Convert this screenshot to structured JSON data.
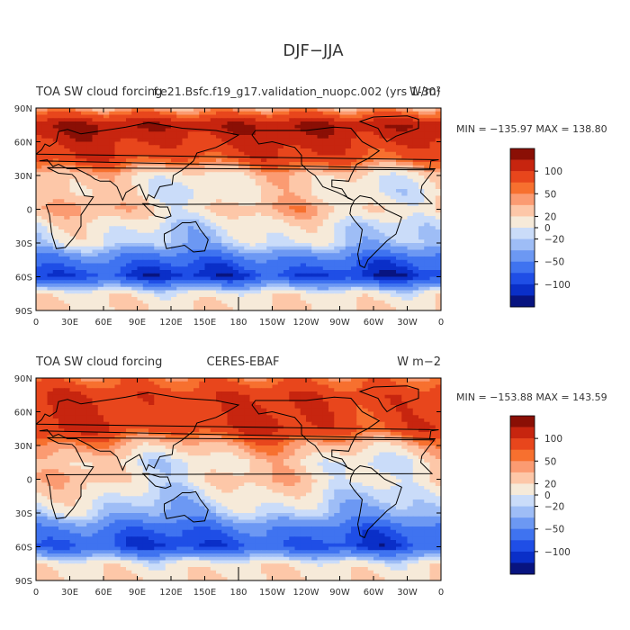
{
  "page_title": "DJF−JJA",
  "colorbar": {
    "colors": [
      "#081480",
      "#0a2fc8",
      "#1f4ee6",
      "#3f73f0",
      "#6c98f3",
      "#9ebdf6",
      "#cadcf9",
      "#f6ead9",
      "#fdc7a8",
      "#fb9b72",
      "#f7702f",
      "#e8461c",
      "#c7250f",
      "#8a0f05"
    ],
    "labels": [
      "100",
      "50",
      "20",
      "0",
      "−20",
      "−50",
      "−100"
    ]
  },
  "panels": [
    {
      "title_left": "TOA SW cloud forcing",
      "title_center": "f.e21.Bsfc.f19_g17.validation_nuopc.002 (yrs 1-30)",
      "units": "W/m²",
      "stats": "MIN = −135.97 MAX = 138.80"
    },
    {
      "title_left": "TOA SW cloud forcing",
      "title_center": "CERES-EBAF",
      "units": "W m−2",
      "stats": "MIN = −153.88 MAX = 143.59"
    }
  ],
  "axes": {
    "lat_ticks": [
      "90N",
      "60N",
      "30N",
      "0",
      "30S",
      "60S",
      "90S"
    ],
    "lon_ticks": [
      "0",
      "30E",
      "60E",
      "90E",
      "120E",
      "150E",
      "180",
      "150W",
      "120W",
      "90W",
      "60W",
      "30W",
      "0"
    ]
  },
  "chart_data": [
    {
      "type": "heatmap",
      "title": "TOA SW cloud forcing",
      "subtitle": "f.e21.Bsfc.f19_g17.validation_nuopc.002 (yrs 1-30)",
      "units": "W/m²",
      "x_ticks": [
        "0",
        "30E",
        "60E",
        "90E",
        "120E",
        "150E",
        "180",
        "150W",
        "120W",
        "90W",
        "60W",
        "30W",
        "0"
      ],
      "y_ticks": [
        "90N",
        "60N",
        "30N",
        "0",
        "30S",
        "60S",
        "90S"
      ],
      "min": -135.97,
      "max": 138.8,
      "zonal_profile": [
        {
          "lat": 90,
          "value": 20
        },
        {
          "lat": 75,
          "value": 100
        },
        {
          "lat": 60,
          "value": 80
        },
        {
          "lat": 45,
          "value": 60
        },
        {
          "lat": 30,
          "value": 0
        },
        {
          "lat": 15,
          "value": -10
        },
        {
          "lat": 0,
          "value": 10
        },
        {
          "lat": -15,
          "value": -20
        },
        {
          "lat": -30,
          "value": -30
        },
        {
          "lat": -45,
          "value": -90
        },
        {
          "lat": -60,
          "value": -120
        },
        {
          "lat": -75,
          "value": -10
        },
        {
          "lat": -90,
          "value": 0
        }
      ]
    },
    {
      "type": "heatmap",
      "title": "TOA SW cloud forcing",
      "subtitle": "CERES-EBAF",
      "units": "W m−2",
      "x_ticks": [
        "0",
        "30E",
        "60E",
        "90E",
        "120E",
        "150E",
        "180",
        "150W",
        "120W",
        "90W",
        "60W",
        "30W",
        "0"
      ],
      "y_ticks": [
        "90N",
        "60N",
        "30N",
        "0",
        "30S",
        "60S",
        "90S"
      ],
      "min": -153.88,
      "max": 143.59,
      "zonal_profile": [
        {
          "lat": 90,
          "value": 40
        },
        {
          "lat": 75,
          "value": 70
        },
        {
          "lat": 60,
          "value": 70
        },
        {
          "lat": 45,
          "value": 70
        },
        {
          "lat": 30,
          "value": 20
        },
        {
          "lat": 15,
          "value": -10
        },
        {
          "lat": 0,
          "value": 0
        },
        {
          "lat": -15,
          "value": -20
        },
        {
          "lat": -30,
          "value": -40
        },
        {
          "lat": -45,
          "value": -90
        },
        {
          "lat": -60,
          "value": -110
        },
        {
          "lat": -75,
          "value": -10
        },
        {
          "lat": -90,
          "value": 0
        }
      ]
    }
  ]
}
